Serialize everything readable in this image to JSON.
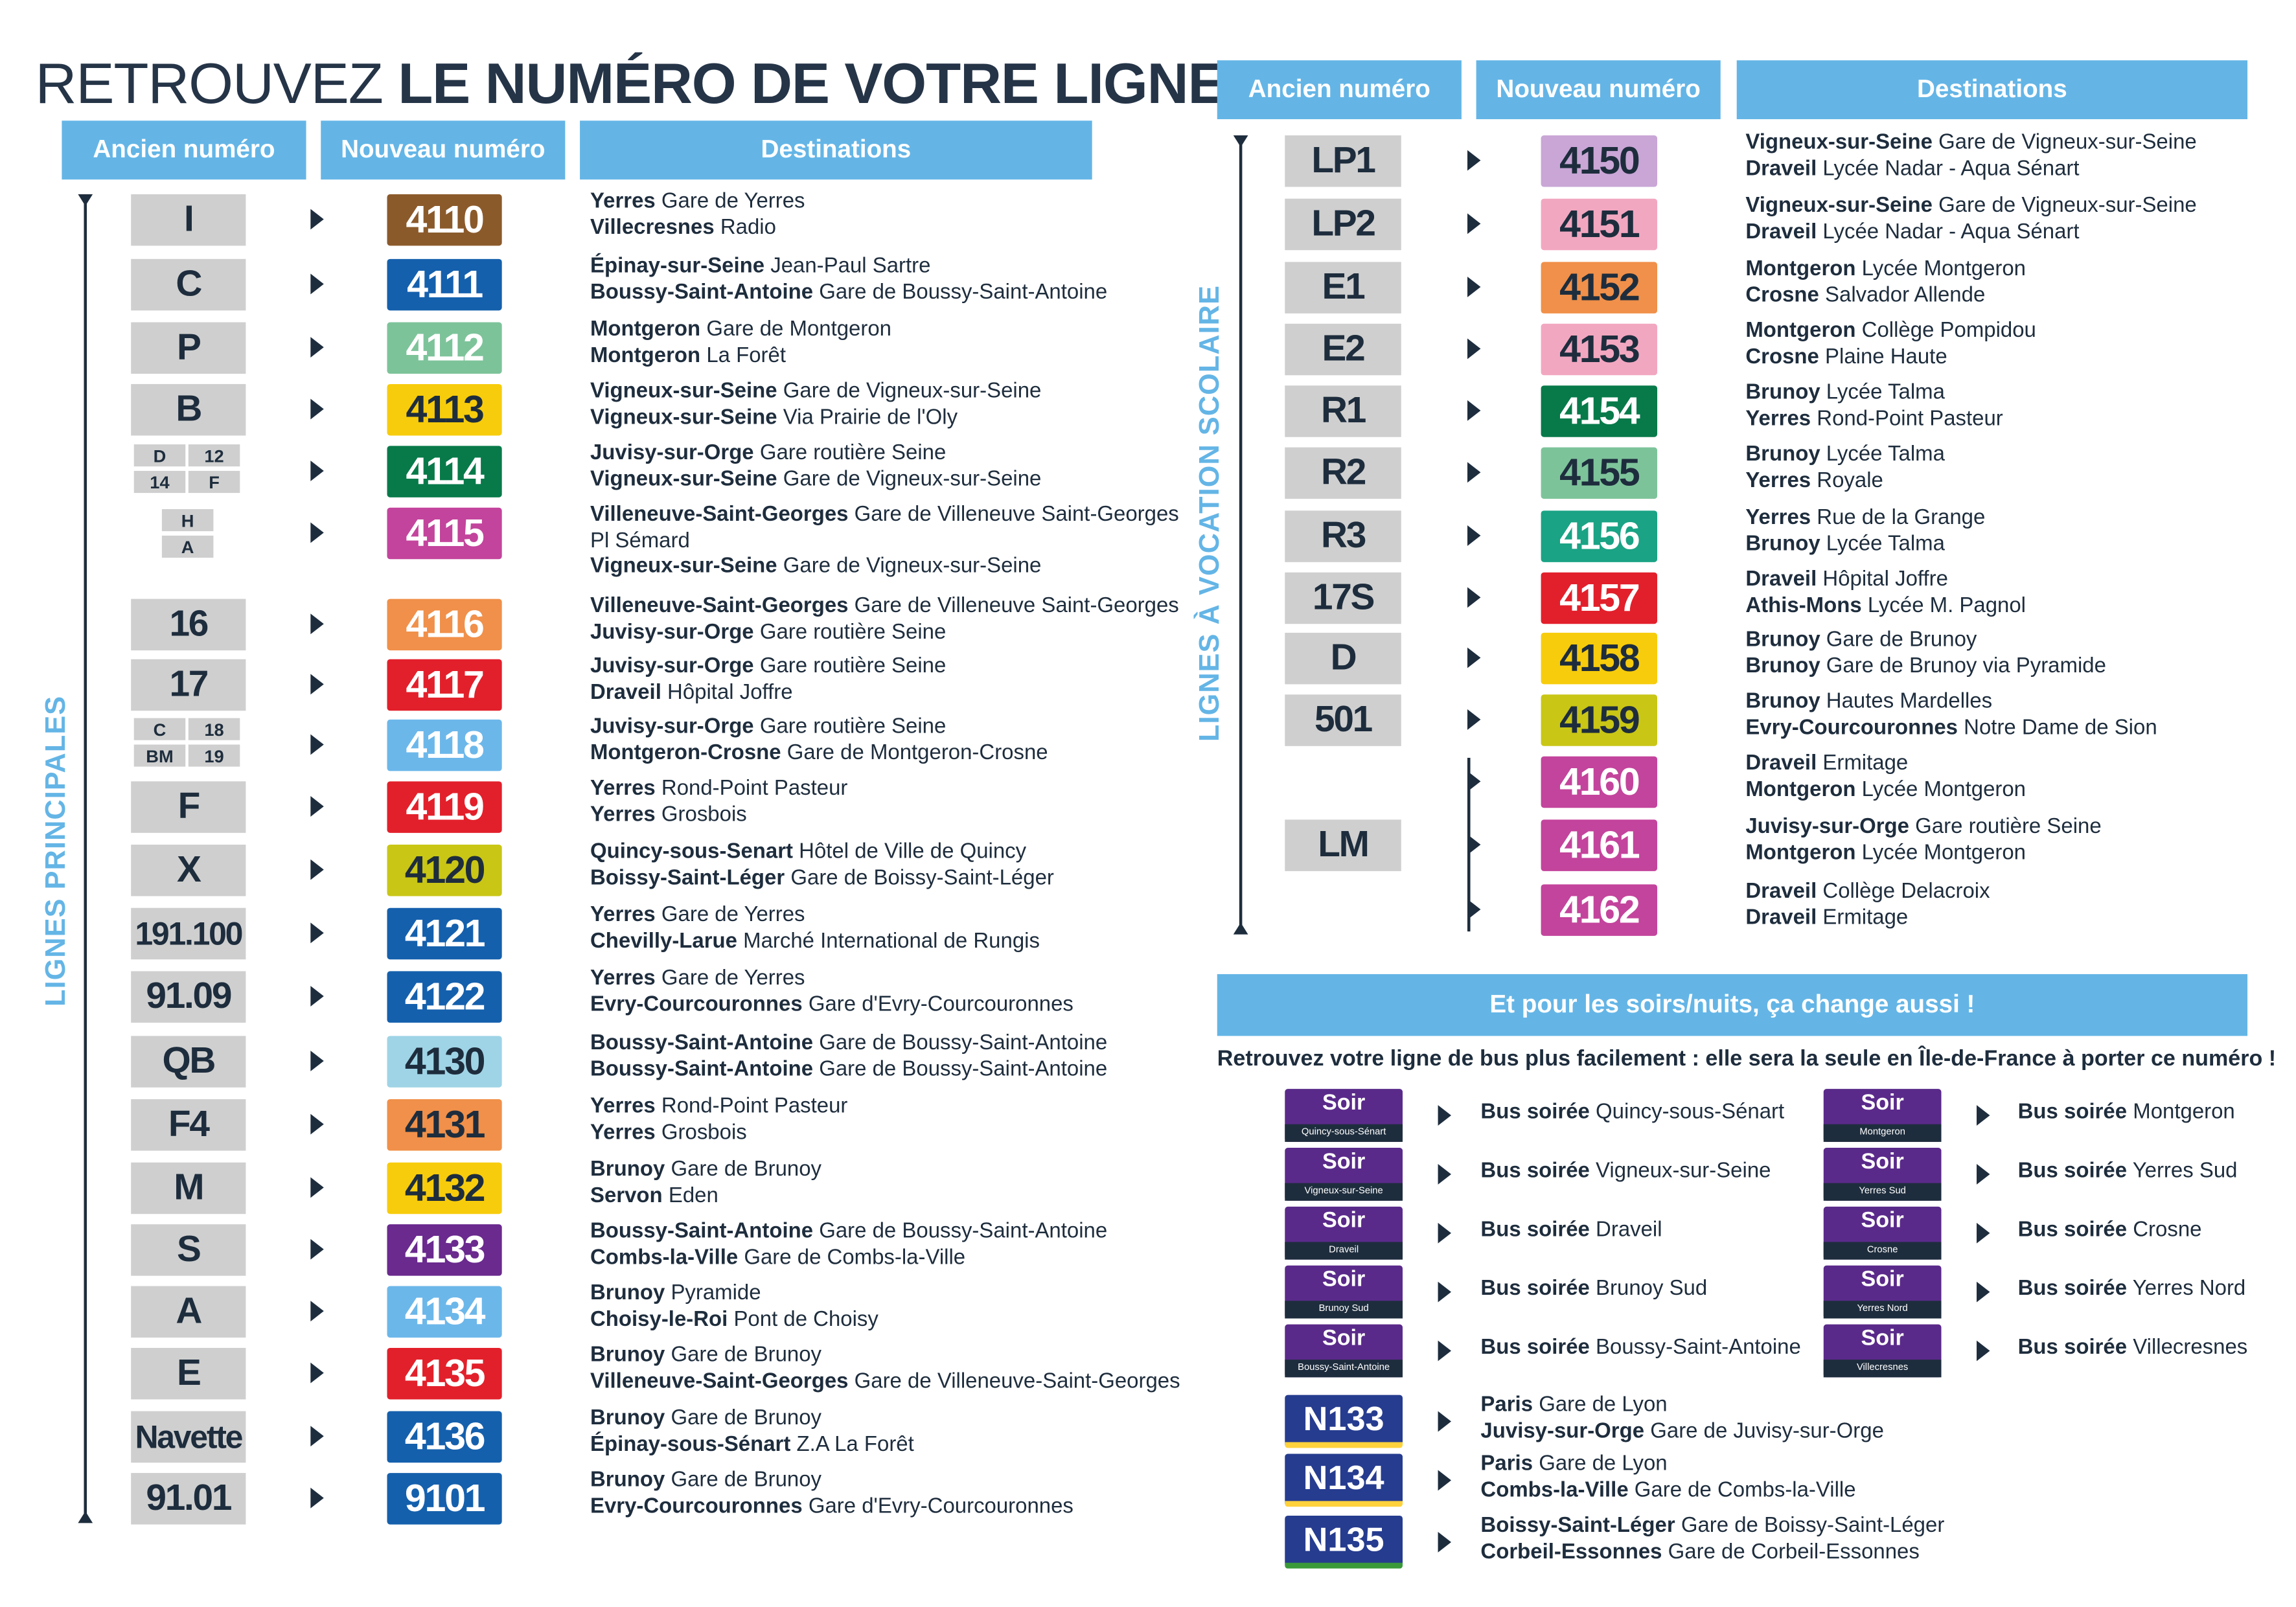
{
  "title": {
    "light": "RETROUVEZ ",
    "bold": "LE NUMÉRO DE VOTRE LIGNE"
  },
  "headers": {
    "old": "Ancien numéro",
    "new": "Nouveau numéro",
    "dest": "Destinations"
  },
  "side_labels": {
    "main": "LIGNES PRINCIPALES",
    "school": "LIGNES À VOCATION SCOLAIRE"
  },
  "colors": {
    "header": "#64b5e6",
    "old_tile": "#cfcfcf",
    "text": "#1e2d3d",
    "soir": "#5a2a8a",
    "night": "#263c8f"
  },
  "main_lines": [
    {
      "old": "I",
      "new": "4110",
      "color": "#8b5a2b",
      "d": [
        [
          "Yerres",
          "Gare de Yerres"
        ],
        [
          "Villecresnes",
          "Radio"
        ]
      ]
    },
    {
      "old": "C",
      "new": "4111",
      "color": "#1560ad",
      "d": [
        [
          "Épinay-sur-Seine",
          "Jean-Paul Sartre"
        ],
        [
          "Boussy-Saint-Antoine",
          "Gare de Boussy-Saint-Antoine"
        ]
      ]
    },
    {
      "old": "P",
      "new": "4112",
      "color": "#7dc39a",
      "d": [
        [
          "Montgeron",
          "Gare de Montgeron"
        ],
        [
          "Montgeron",
          "La Forêt"
        ]
      ]
    },
    {
      "old": "B",
      "new": "4113",
      "color": "#f7cc0c",
      "textColor": "#1e2d3d",
      "d": [
        [
          "Vigneux-sur-Seine",
          "Gare de Vigneux-sur-Seine"
        ],
        [
          "Vigneux-sur-Seine",
          "Via Prairie de l'Oly"
        ]
      ]
    },
    {
      "old": "",
      "minis": [
        "D",
        "12",
        "14",
        "F"
      ],
      "new": "4114",
      "color": "#087a4a",
      "d": [
        [
          "Juvisy-sur-Orge",
          "Gare routière Seine"
        ],
        [
          "Vigneux-sur-Seine",
          "Gare de Vigneux-sur-Seine"
        ]
      ]
    },
    {
      "old": "",
      "minis": [
        "H",
        "A"
      ],
      "new": "4115",
      "color": "#c3449c",
      "d": [
        [
          "Villeneuve-Saint-Georges",
          "Gare de Villeneuve Saint-Georges"
        ],
        [
          "",
          "Pl Sémard"
        ],
        [
          "Vigneux-sur-Seine",
          "Gare de Vigneux-sur-Seine"
        ]
      ]
    },
    {
      "old": "16",
      "new": "4116",
      "color": "#f0904a",
      "d": [
        [
          "Villeneuve-Saint-Georges",
          "Gare de Villeneuve Saint-Georges"
        ],
        [
          "Juvisy-sur-Orge",
          "Gare routière Seine"
        ]
      ]
    },
    {
      "old": "17",
      "new": "4117",
      "color": "#e2202b",
      "d": [
        [
          "Juvisy-sur-Orge",
          "Gare routière Seine"
        ],
        [
          "Draveil",
          "Hôpital Joffre"
        ]
      ]
    },
    {
      "old": "",
      "minis": [
        "C",
        "18",
        "BM",
        "19"
      ],
      "new": "4118",
      "color": "#6cb7ea",
      "d": [
        [
          "Juvisy-sur-Orge",
          "Gare routière Seine"
        ],
        [
          "Montgeron-Crosne",
          "Gare de Montgeron-Crosne"
        ]
      ]
    },
    {
      "old": "F",
      "new": "4119",
      "color": "#e2202b",
      "d": [
        [
          "Yerres",
          "Rond-Point Pasteur"
        ],
        [
          "Yerres",
          "Grosbois"
        ]
      ]
    },
    {
      "old": "X",
      "new": "4120",
      "color": "#c9c616",
      "textColor": "#1e2d3d",
      "d": [
        [
          "Quincy-sous-Senart",
          "Hôtel de Ville de Quincy"
        ],
        [
          "Boissy-Saint-Léger",
          "Gare de Boissy-Saint-Léger"
        ]
      ]
    },
    {
      "old": "191.100",
      "new": "4121",
      "color": "#1560ad",
      "d": [
        [
          "Yerres",
          "Gare de Yerres"
        ],
        [
          "Chevilly-Larue",
          "Marché International de Rungis"
        ]
      ]
    },
    {
      "old": "91.09",
      "new": "4122",
      "color": "#1560ad",
      "d": [
        [
          "Yerres",
          "Gare de Yerres"
        ],
        [
          "Evry-Courcouronnes",
          "Gare d'Evry-Courcouronnes"
        ]
      ]
    },
    {
      "old": "QB",
      "new": "4130",
      "color": "#9fd4e6",
      "textColor": "#1e2d3d",
      "d": [
        [
          "Boussy-Saint-Antoine",
          "Gare de Boussy-Saint-Antoine"
        ],
        [
          "Boussy-Saint-Antoine",
          "Gare de Boussy-Saint-Antoine"
        ]
      ]
    },
    {
      "old": "F4",
      "new": "4131",
      "color": "#f0904a",
      "textColor": "#1e2d3d",
      "d": [
        [
          "Yerres",
          "Rond-Point Pasteur"
        ],
        [
          "Yerres",
          "Grosbois"
        ]
      ]
    },
    {
      "old": "M",
      "new": "4132",
      "color": "#f7cc0c",
      "textColor": "#1e2d3d",
      "d": [
        [
          "Brunoy",
          "Gare de Brunoy"
        ],
        [
          "Servon",
          "Eden"
        ]
      ]
    },
    {
      "old": "S",
      "new": "4133",
      "color": "#6a2a8e",
      "d": [
        [
          "Boussy-Saint-Antoine",
          "Gare de Boussy-Saint-Antoine"
        ],
        [
          "Combs-la-Ville",
          "Gare de Combs-la-Ville"
        ]
      ]
    },
    {
      "old": "A",
      "new": "4134",
      "color": "#6cb7ea",
      "d": [
        [
          "Brunoy",
          "Pyramide"
        ],
        [
          "Choisy-le-Roi",
          "Pont de Choisy"
        ]
      ]
    },
    {
      "old": "E",
      "new": "4135",
      "color": "#e2202b",
      "d": [
        [
          "Brunoy",
          "Gare de Brunoy"
        ],
        [
          "Villeneuve-Saint-Georges",
          "Gare de Villeneuve-Saint-Georges"
        ]
      ]
    },
    {
      "old": "Navette",
      "new": "4136",
      "color": "#1560ad",
      "d": [
        [
          "Brunoy",
          "Gare de Brunoy"
        ],
        [
          "Épinay-sous-Sénart",
          "Z.A La Forêt"
        ]
      ]
    },
    {
      "old": "91.01",
      "new": "9101",
      "color": "#1560ad",
      "d": [
        [
          "Brunoy",
          "Gare de Brunoy"
        ],
        [
          "Evry-Courcouronnes",
          "Gare d'Evry-Courcouronnes"
        ]
      ]
    }
  ],
  "school_lines": [
    {
      "old": "LP1",
      "new": "4150",
      "color": "#c9a6d6",
      "textColor": "#1e2d3d",
      "d": [
        [
          "Vigneux-sur-Seine",
          "Gare de Vigneux-sur-Seine"
        ],
        [
          "Draveil",
          "Lycée Nadar - Aqua Sénart"
        ]
      ]
    },
    {
      "old": "LP2",
      "new": "4151",
      "color": "#f2a7c0",
      "textColor": "#1e2d3d",
      "d": [
        [
          "Vigneux-sur-Seine",
          "Gare de Vigneux-sur-Seine"
        ],
        [
          "Draveil",
          "Lycée Nadar - Aqua Sénart"
        ]
      ]
    },
    {
      "old": "E1",
      "new": "4152",
      "color": "#f0904a",
      "textColor": "#1e2d3d",
      "d": [
        [
          "Montgeron",
          "Lycée Montgeron"
        ],
        [
          "Crosne",
          "Salvador Allende"
        ]
      ]
    },
    {
      "old": "E2",
      "new": "4153",
      "color": "#f2a7c0",
      "textColor": "#1e2d3d",
      "d": [
        [
          "Montgeron",
          "Collège Pompidou"
        ],
        [
          "Crosne",
          "Plaine Haute"
        ]
      ]
    },
    {
      "old": "R1",
      "new": "4154",
      "color": "#087a4a",
      "d": [
        [
          "Brunoy",
          "Lycée Talma"
        ],
        [
          "Yerres",
          "Rond-Point Pasteur"
        ]
      ]
    },
    {
      "old": "R2",
      "new": "4155",
      "color": "#7dc39a",
      "textColor": "#1e2d3d",
      "d": [
        [
          "Brunoy",
          "Lycée Talma"
        ],
        [
          "Yerres",
          "Royale"
        ]
      ]
    },
    {
      "old": "R3",
      "new": "4156",
      "color": "#1aa385",
      "d": [
        [
          "Yerres",
          "Rue de la Grange"
        ],
        [
          "Brunoy",
          "Lycée Talma"
        ]
      ]
    },
    {
      "old": "17S",
      "new": "4157",
      "color": "#e2202b",
      "d": [
        [
          "Draveil",
          "Hôpital Joffre"
        ],
        [
          "Athis-Mons",
          "Lycée M. Pagnol"
        ]
      ]
    },
    {
      "old": "D",
      "new": "4158",
      "color": "#f7cc0c",
      "textColor": "#1e2d3d",
      "d": [
        [
          "Brunoy",
          "Gare de Brunoy"
        ],
        [
          "Brunoy",
          "Gare de Brunoy via Pyramide"
        ]
      ]
    },
    {
      "old": "501",
      "new": "4159",
      "color": "#c9c616",
      "textColor": "#1e2d3d",
      "d": [
        [
          "Brunoy",
          "Hautes Mardelles"
        ],
        [
          "Evry-Courcouronnes",
          "Notre Dame de Sion"
        ]
      ]
    },
    {
      "old": "",
      "new": "4160",
      "color": "#c3449c",
      "d": [
        [
          "Draveil",
          "Ermitage"
        ],
        [
          "Montgeron",
          "Lycée Montgeron"
        ]
      ]
    },
    {
      "old": "LM",
      "new": "4161",
      "color": "#c3449c",
      "d": [
        [
          "Juvisy-sur-Orge",
          "Gare routière Seine"
        ],
        [
          "Montgeron",
          "Lycée Montgeron"
        ]
      ]
    },
    {
      "old": "",
      "new": "4162",
      "color": "#c3449c",
      "d": [
        [
          "Draveil",
          "Collège Delacroix"
        ],
        [
          "Draveil",
          "Ermitage"
        ]
      ]
    }
  ],
  "evening": {
    "banner": "Et pour les soirs/nuits, ça change aussi !",
    "intro": "Retrouvez votre ligne de bus plus facilement : elle sera la seule en Île-de-France à porter ce numéro !",
    "tile_label": "Soir",
    "prefix": "Bus soirée",
    "left": [
      {
        "band": "Quincy-sous-Sénart",
        "place": "Quincy-sous-Sénart"
      },
      {
        "band": "Vigneux-sur-Seine",
        "place": "Vigneux-sur-Seine"
      },
      {
        "band": "Draveil",
        "place": "Draveil"
      },
      {
        "band": "Brunoy Sud",
        "place": "Brunoy Sud"
      },
      {
        "band": "Boussy-Saint-Antoine",
        "place": "Boussy-Saint-Antoine"
      }
    ],
    "right": [
      {
        "band": "Montgeron",
        "place": "Montgeron"
      },
      {
        "band": "Yerres Sud",
        "place": "Yerres Sud"
      },
      {
        "band": "Crosne",
        "place": "Crosne"
      },
      {
        "band": "Yerres Nord",
        "place": "Yerres Nord"
      },
      {
        "band": "Villecresnes",
        "place": "Villecresnes"
      }
    ],
    "night": [
      {
        "code": "N133",
        "d": [
          [
            "Paris",
            "Gare de Lyon"
          ],
          [
            "Juvisy-sur-Orge",
            "Gare de Juvisy-sur-Orge"
          ]
        ]
      },
      {
        "code": "N134",
        "d": [
          [
            "Paris",
            "Gare de Lyon"
          ],
          [
            "Combs-la-Ville",
            "Gare de Combs-la-Ville"
          ]
        ]
      },
      {
        "code": "N135",
        "d": [
          [
            "Boissy-Saint-Léger",
            "Gare de Boissy-Saint-Léger"
          ],
          [
            "Corbeil-Essonnes",
            "Gare de Corbeil-Essonnes"
          ]
        ]
      }
    ]
  }
}
